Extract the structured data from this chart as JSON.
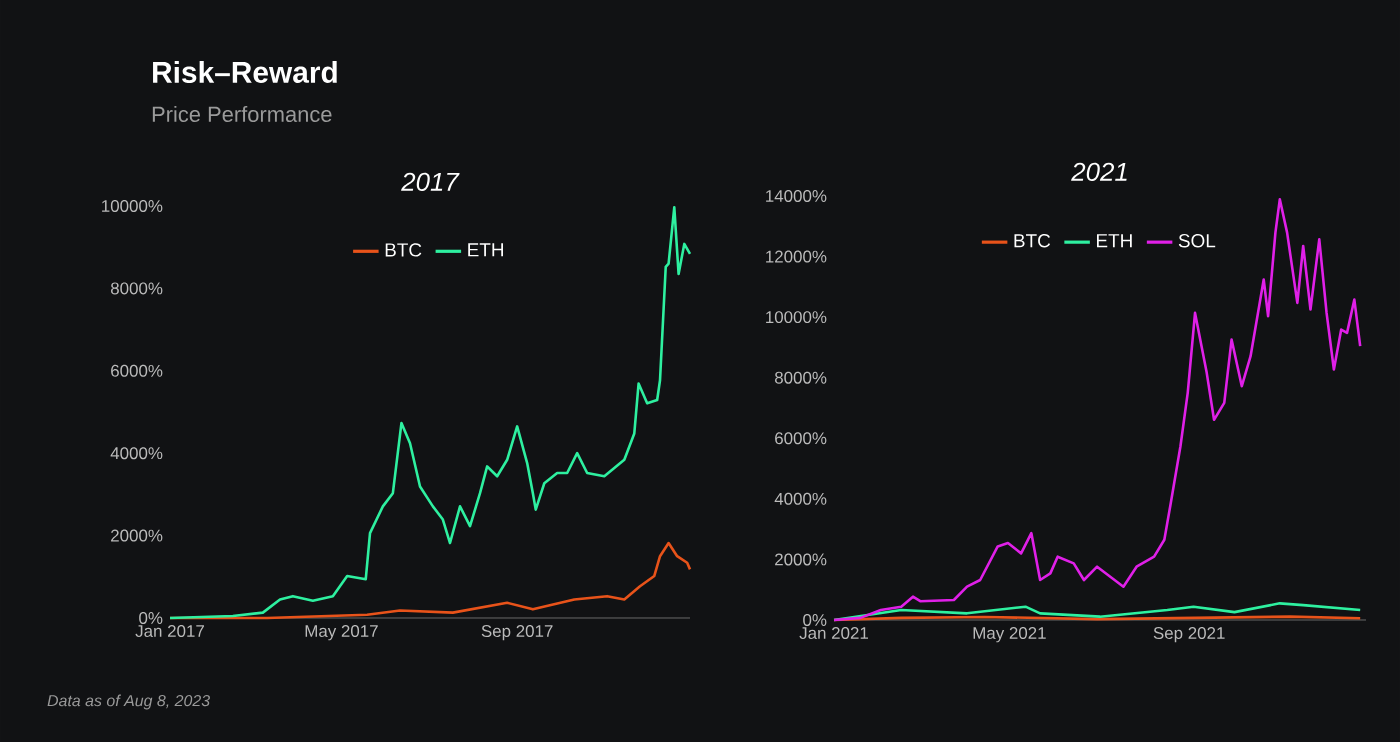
{
  "chart_data": [
    {
      "type": "other",
      "title": "Risk–Reward",
      "subtitle": "Price Performance",
      "annotations": [
        "Data as of Aug 8, 2023"
      ]
    },
    {
      "type": "line",
      "title": "2017",
      "legend": "top",
      "marker": "none",
      "line_style": "solid",
      "xlim": [
        "2017-01-01",
        "2017-12-31"
      ],
      "ylim": [
        0,
        10000
      ],
      "xticks": [
        {
          "value": "2017-01-01",
          "label": "Jan 2017"
        },
        {
          "value": "2017-05-01",
          "label": "May 2017"
        },
        {
          "value": "2017-09-01",
          "label": "Sep 2017"
        }
      ],
      "yticks": [
        {
          "value": 0,
          "label": "0%"
        },
        {
          "value": 2000,
          "label": "2000%"
        },
        {
          "value": 4000,
          "label": "4000%"
        },
        {
          "value": 6000,
          "label": "6000%"
        },
        {
          "value": 8000,
          "label": "8000%"
        },
        {
          "value": 10000,
          "label": "10000%"
        }
      ],
      "series": [
        {
          "name": "BTC",
          "color": "#e8531a",
          "x": [
            "2017-01-01",
            "2017-03-10",
            "2017-05-19",
            "2017-06-11",
            "2017-07-18",
            "2017-08-25",
            "2017-09-12",
            "2017-10-11",
            "2017-11-03",
            "2017-11-15",
            "2017-11-26",
            "2017-12-06",
            "2017-12-10",
            "2017-12-16",
            "2017-12-22",
            "2017-12-29",
            "2017-12-31"
          ],
          "values": [
            0,
            0,
            80,
            180,
            130,
            370,
            210,
            450,
            530,
            450,
            770,
            1020,
            1500,
            1820,
            1500,
            1340,
            1180
          ]
        },
        {
          "name": "ETH",
          "color": "#2ef0a0",
          "x": [
            "2017-01-01",
            "2017-02-14",
            "2017-03-07",
            "2017-03-19",
            "2017-03-28",
            "2017-04-11",
            "2017-04-25",
            "2017-05-05",
            "2017-05-18",
            "2017-05-21",
            "2017-05-30",
            "2017-06-06",
            "2017-06-12",
            "2017-06-18",
            "2017-06-25",
            "2017-07-04",
            "2017-07-11",
            "2017-07-16",
            "2017-07-23",
            "2017-07-30",
            "2017-08-06",
            "2017-08-11",
            "2017-08-18",
            "2017-08-25",
            "2017-09-01",
            "2017-09-08",
            "2017-09-12",
            "2017-09-14",
            "2017-09-20",
            "2017-09-29",
            "2017-10-06",
            "2017-10-13",
            "2017-10-20",
            "2017-11-01",
            "2017-11-15",
            "2017-11-22",
            "2017-11-25",
            "2017-12-01",
            "2017-12-08",
            "2017-12-10",
            "2017-12-14",
            "2017-12-16",
            "2017-12-20",
            "2017-12-23",
            "2017-12-27",
            "2017-12-31"
          ],
          "values": [
            0,
            50,
            130,
            450,
            530,
            420,
            530,
            1020,
            940,
            2060,
            2710,
            3030,
            4730,
            4240,
            3190,
            2710,
            2390,
            1820,
            2710,
            2230,
            3030,
            3680,
            3440,
            3840,
            4650,
            3760,
            3030,
            2630,
            3270,
            3520,
            3520,
            4000,
            3520,
            3440,
            3840,
            4480,
            5690,
            5210,
            5290,
            5770,
            8520,
            8600,
            9970,
            8350,
            9080,
            8840
          ]
        }
      ]
    },
    {
      "type": "line",
      "title": "2021",
      "legend": "top",
      "marker": "none",
      "line_style": "solid",
      "xlim": [
        "2021-01-01",
        "2021-12-31"
      ],
      "ylim": [
        0,
        14000
      ],
      "xticks": [
        {
          "value": "2021-01-01",
          "label": "Jan 2021"
        },
        {
          "value": "2021-05-01",
          "label": "May 2021"
        },
        {
          "value": "2021-09-01",
          "label": "Sep 2021"
        }
      ],
      "yticks": [
        {
          "value": 0,
          "label": "0%"
        },
        {
          "value": 2000,
          "label": "2000%"
        },
        {
          "value": 4000,
          "label": "4000%"
        },
        {
          "value": 6000,
          "label": "6000%"
        },
        {
          "value": 8000,
          "label": "8000%"
        },
        {
          "value": 10000,
          "label": "10000%"
        },
        {
          "value": 12000,
          "label": "12000%"
        },
        {
          "value": 14000,
          "label": "14000%"
        }
      ],
      "series": [
        {
          "name": "BTC",
          "color": "#e8531a",
          "x": [
            "2021-01-01",
            "2021-02-16",
            "2021-04-14",
            "2021-06-30",
            "2021-09-05",
            "2021-11-09",
            "2021-12-27"
          ],
          "values": [
            0,
            70,
            100,
            30,
            70,
            110,
            60
          ]
        },
        {
          "name": "ETH",
          "color": "#2ef0a0",
          "x": [
            "2021-01-01",
            "2021-02-16",
            "2021-04-02",
            "2021-05-12",
            "2021-05-22",
            "2021-07-02",
            "2021-08-17",
            "2021-09-04",
            "2021-10-02",
            "2021-11-02",
            "2021-11-18",
            "2021-12-27"
          ],
          "values": [
            0,
            330,
            220,
            440,
            220,
            110,
            330,
            440,
            260,
            550,
            490,
            330
          ]
        },
        {
          "name": "SOL",
          "color": "#e020e8",
          "x": [
            "2021-01-01",
            "2021-01-19",
            "2021-02-02",
            "2021-02-16",
            "2021-02-24",
            "2021-03-01",
            "2021-03-24",
            "2021-04-02",
            "2021-04-11",
            "2021-04-23",
            "2021-04-30",
            "2021-05-09",
            "2021-05-16",
            "2021-05-22",
            "2021-05-29",
            "2021-06-03",
            "2021-06-14",
            "2021-06-21",
            "2021-06-30",
            "2021-07-09",
            "2021-07-18",
            "2021-07-27",
            "2021-08-08",
            "2021-08-15",
            "2021-08-19",
            "2021-08-26",
            "2021-08-31",
            "2021-09-05",
            "2021-09-13",
            "2021-09-18",
            "2021-09-25",
            "2021-09-30",
            "2021-10-07",
            "2021-10-13",
            "2021-10-22",
            "2021-10-25",
            "2021-10-30",
            "2021-11-02",
            "2021-11-07",
            "2021-11-14",
            "2021-11-18",
            "2021-11-23",
            "2021-11-29",
            "2021-12-04",
            "2021-12-09",
            "2021-12-14",
            "2021-12-18",
            "2021-12-23",
            "2021-12-27"
          ],
          "values": [
            0,
            70,
            330,
            440,
            770,
            620,
            660,
            1100,
            1320,
            2430,
            2540,
            2200,
            2870,
            1320,
            1540,
            2090,
            1870,
            1320,
            1760,
            1430,
            1100,
            1760,
            2090,
            2650,
            3750,
            5730,
            7500,
            10140,
            8160,
            6610,
            7170,
            9260,
            7720,
            8710,
            11240,
            10030,
            12790,
            13890,
            12790,
            10470,
            12350,
            10250,
            12570,
            10140,
            8270,
            9590,
            9480,
            10580,
            9040
          ]
        }
      ]
    }
  ]
}
